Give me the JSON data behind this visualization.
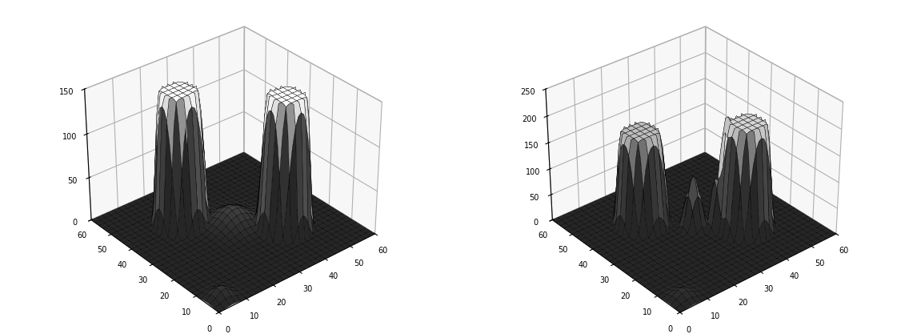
{
  "xlim": [
    0,
    60
  ],
  "ylim": [
    0,
    60
  ],
  "plot1_zlim": [
    0,
    150
  ],
  "plot1_zticks": [
    0,
    50,
    100,
    150
  ],
  "plot2_zlim": [
    0,
    250
  ],
  "plot2_zticks": [
    0,
    50,
    100,
    150,
    200,
    250
  ],
  "xy_ticks": [
    0,
    10,
    20,
    30,
    40,
    50,
    60
  ],
  "n_points": 61,
  "surface_color": "white",
  "edge_color": "black",
  "linewidth": 0.3,
  "background_color": "white",
  "elev": 32,
  "azim": -130
}
